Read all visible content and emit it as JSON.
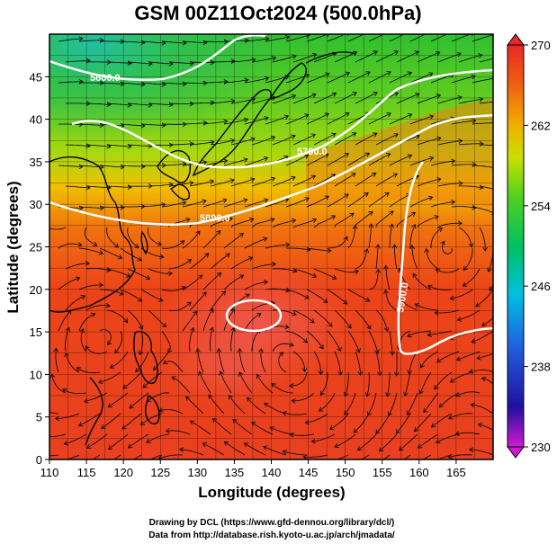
{
  "title": "GSM 00Z11Oct2024 (500.0hPa)",
  "xlabel": "Longitude (degrees)",
  "ylabel": "Latitude  (degrees)",
  "credits": [
    "Drawing by DCL (https://www.gfd-dennou.org/library/dcl/)",
    "Data from http://database.rish.kyoto-u.ac.jp/arch/jmadata/"
  ],
  "map": {
    "lon_range": [
      110,
      170
    ],
    "lat_range": [
      0,
      50
    ],
    "xticks": [
      "110",
      "115",
      "120",
      "125",
      "130",
      "135",
      "140",
      "145",
      "150",
      "155",
      "160",
      "165"
    ],
    "yticks": [
      "0",
      "5",
      "10",
      "15",
      "20",
      "25",
      "30",
      "35",
      "40",
      "45"
    ],
    "grid": true
  },
  "colorbar": {
    "min": 230,
    "max": 270,
    "ticks": [
      "270",
      "262",
      "254",
      "246",
      "238",
      "230"
    ],
    "colors": [
      "#c000c0",
      "#2020c0",
      "#2060e0",
      "#00b0e0",
      "#00d0a0",
      "#20c040",
      "#60d020",
      "#c0e000",
      "#f0c000",
      "#f08000",
      "#f04000",
      "#e82020"
    ]
  },
  "contours": {
    "color": "#ffffff",
    "labels": [
      "5600.0",
      "5700.0",
      "5800.0",
      "5900.0"
    ]
  }
}
